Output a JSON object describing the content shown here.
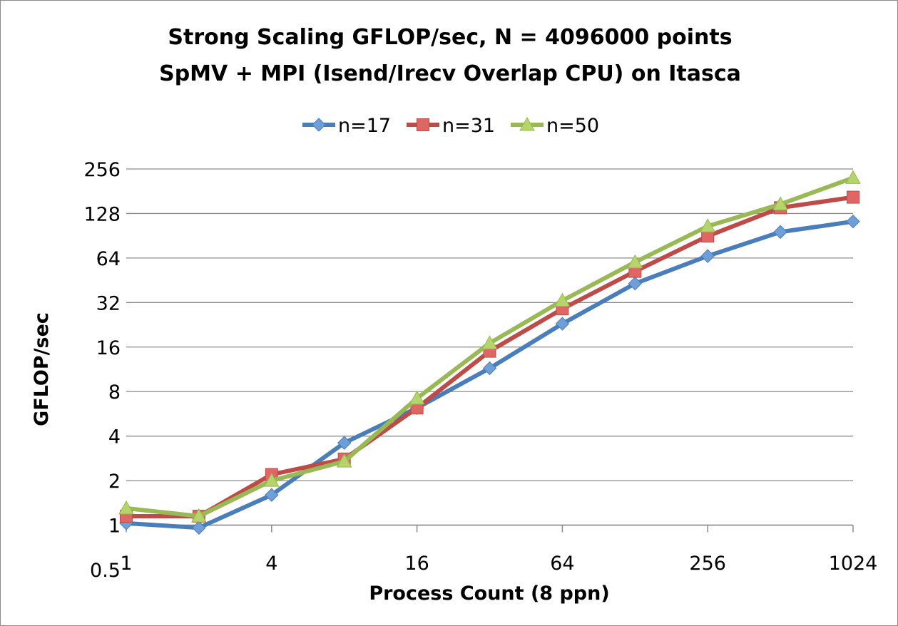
{
  "chart_data": {
    "type": "line",
    "title": "Strong Scaling GFLOP/sec, N = 4096000 points",
    "subtitle": "SpMV + MPI (Isend/Irecv Overlap CPU) on Itasca",
    "xlabel": "Process Count (8 ppn)",
    "ylabel": "GFLOP/sec",
    "x_scale": "log2",
    "y_scale": "log2",
    "xlim": [
      1,
      1024
    ],
    "ylim": [
      0.5,
      256
    ],
    "x_ticks": [
      1,
      4,
      16,
      64,
      256,
      1024
    ],
    "x_tick_labels": [
      "1",
      "4",
      "16",
      "64",
      "256",
      "1024"
    ],
    "y_ticks": [
      0.5,
      1,
      2,
      4,
      8,
      16,
      32,
      64,
      128,
      256
    ],
    "y_tick_labels": [
      "0.5",
      "1",
      "2",
      "4",
      "8",
      "16",
      "32",
      "64",
      "128",
      "256"
    ],
    "grid": "horizontal",
    "legend_position": "top",
    "x": [
      1,
      2,
      4,
      8,
      16,
      32,
      64,
      128,
      256,
      512,
      1024
    ],
    "series": [
      {
        "name": "n=17",
        "color": "#4a7ebb",
        "marker_fill": "#6f9fd8",
        "marker": "diamond",
        "values": [
          1.03,
          0.96,
          1.6,
          3.6,
          6.2,
          11.5,
          23,
          43,
          66,
          96,
          113
        ]
      },
      {
        "name": "n=31",
        "color": "#be4b48",
        "marker_fill": "#e06666",
        "marker": "square",
        "values": [
          1.15,
          1.15,
          2.2,
          2.8,
          6.2,
          15,
          29,
          52,
          90,
          140,
          165
        ]
      },
      {
        "name": "n=50",
        "color": "#98b954",
        "marker_fill": "#b5d56a",
        "marker": "triangle",
        "values": [
          1.3,
          1.15,
          2.0,
          2.7,
          7.2,
          17,
          33,
          60,
          105,
          148,
          223
        ]
      }
    ]
  }
}
